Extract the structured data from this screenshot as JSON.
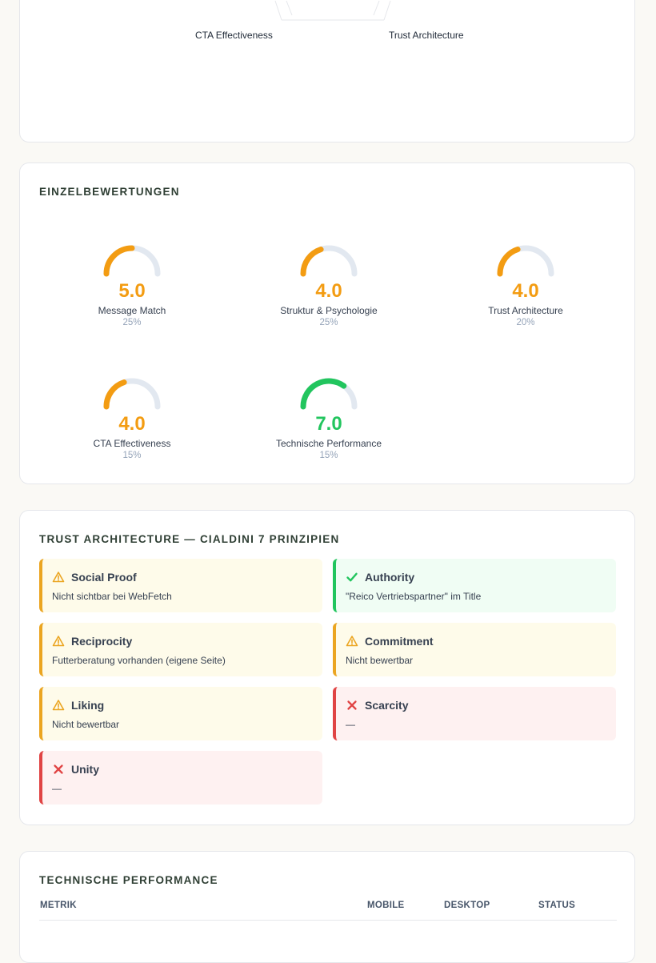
{
  "radar": {
    "labels": [
      "CTA Effectiveness",
      "Trust Architecture"
    ]
  },
  "einzel": {
    "title": "EINZELBEWERTUNGEN",
    "gauges": [
      {
        "score": "5.0",
        "label": "Message Match",
        "weight": "25%",
        "fraction": 0.5,
        "color": "#f39c12"
      },
      {
        "score": "4.0",
        "label": "Struktur & Psychologie",
        "weight": "25%",
        "fraction": 0.4,
        "color": "#f39c12"
      },
      {
        "score": "4.0",
        "label": "Trust Architecture",
        "weight": "20%",
        "fraction": 0.4,
        "color": "#f39c12"
      },
      {
        "score": "4.0",
        "label": "CTA Effectiveness",
        "weight": "15%",
        "fraction": 0.4,
        "color": "#f39c12"
      },
      {
        "score": "7.0",
        "label": "Technische Performance",
        "weight": "15%",
        "fraction": 0.7,
        "color": "#22c55e"
      }
    ]
  },
  "trust": {
    "title": "TRUST ARCHITECTURE — CIALDINI 7 PRINZIPIEN",
    "principles": [
      {
        "name": "Social Proof",
        "desc": "Nicht sichtbar bei WebFetch",
        "status": "warn"
      },
      {
        "name": "Authority",
        "desc": "\"Reico Vertriebspartner\" im Title",
        "status": "ok"
      },
      {
        "name": "Reciprocity",
        "desc": "Futterberatung vorhanden (eigene Seite)",
        "status": "warn"
      },
      {
        "name": "Commitment",
        "desc": "Nicht bewertbar",
        "status": "warn"
      },
      {
        "name": "Liking",
        "desc": "Nicht bewertbar",
        "status": "warn"
      },
      {
        "name": "Scarcity",
        "desc": "—",
        "status": "bad"
      },
      {
        "name": "Unity",
        "desc": "—",
        "status": "bad"
      }
    ]
  },
  "tech": {
    "title": "TECHNISCHE PERFORMANCE",
    "columns": [
      "METRIK",
      "MOBILE",
      "DESKTOP",
      "STATUS"
    ]
  },
  "colors": {
    "warn": "#eba521",
    "ok": "#22c55e",
    "bad": "#e04444",
    "gauge_track": "#e2e8f0"
  }
}
